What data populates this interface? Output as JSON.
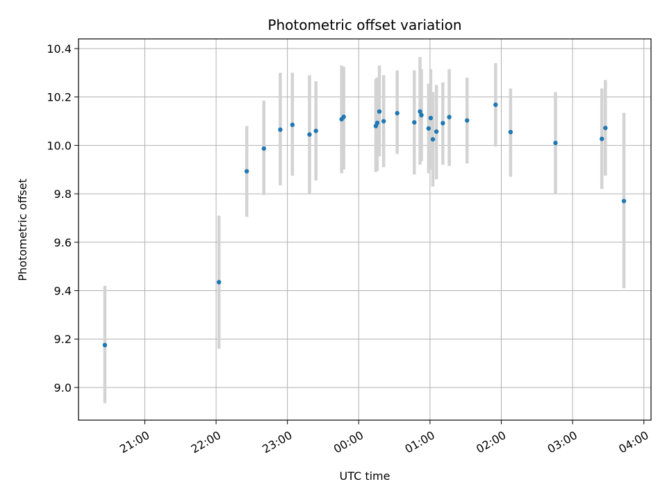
{
  "chart_data": {
    "type": "scatter",
    "title": "Photometric offset variation",
    "xlabel": "UTC time",
    "ylabel": "Photometric offset",
    "grid": true,
    "colors": {
      "point": "#1f77b4",
      "errorbar": "#d3d3d3",
      "grid": "#b0b0b0",
      "axis": "#000000"
    },
    "xlim_hours": [
      20.07,
      28.1
    ],
    "ylim": [
      8.865,
      10.44
    ],
    "x_ticks": [
      {
        "value": 21,
        "label": "21:00"
      },
      {
        "value": 22,
        "label": "22:00"
      },
      {
        "value": 23,
        "label": "23:00"
      },
      {
        "value": 24,
        "label": "00:00"
      },
      {
        "value": 25,
        "label": "01:00"
      },
      {
        "value": 26,
        "label": "02:00"
      },
      {
        "value": 27,
        "label": "03:00"
      },
      {
        "value": 28,
        "label": "04:00"
      }
    ],
    "y_ticks": [
      {
        "value": 9.0,
        "label": "9.0"
      },
      {
        "value": 9.2,
        "label": "9.2"
      },
      {
        "value": 9.4,
        "label": "9.4"
      },
      {
        "value": 9.6,
        "label": "9.6"
      },
      {
        "value": 9.8,
        "label": "9.8"
      },
      {
        "value": 10.0,
        "label": "10.0"
      },
      {
        "value": 10.2,
        "label": "10.2"
      },
      {
        "value": 10.4,
        "label": "10.4"
      }
    ],
    "points": [
      {
        "x": 20.44,
        "y": 9.175,
        "lo": 8.935,
        "hi": 9.42
      },
      {
        "x": 22.04,
        "y": 9.435,
        "lo": 9.16,
        "hi": 9.71
      },
      {
        "x": 22.43,
        "y": 9.893,
        "lo": 9.705,
        "hi": 10.08
      },
      {
        "x": 22.67,
        "y": 9.987,
        "lo": 9.795,
        "hi": 10.185
      },
      {
        "x": 22.9,
        "y": 10.065,
        "lo": 9.835,
        "hi": 10.3
      },
      {
        "x": 23.07,
        "y": 10.085,
        "lo": 9.875,
        "hi": 10.3
      },
      {
        "x": 23.31,
        "y": 10.045,
        "lo": 9.8,
        "hi": 10.29
      },
      {
        "x": 23.4,
        "y": 10.06,
        "lo": 9.855,
        "hi": 10.265
      },
      {
        "x": 23.76,
        "y": 10.108,
        "lo": 9.885,
        "hi": 10.33
      },
      {
        "x": 23.79,
        "y": 10.118,
        "lo": 9.9,
        "hi": 10.325
      },
      {
        "x": 24.24,
        "y": 10.08,
        "lo": 9.89,
        "hi": 10.275
      },
      {
        "x": 24.26,
        "y": 10.093,
        "lo": 9.895,
        "hi": 10.28
      },
      {
        "x": 24.29,
        "y": 10.14,
        "lo": 9.955,
        "hi": 10.33
      },
      {
        "x": 24.35,
        "y": 10.1,
        "lo": 9.91,
        "hi": 10.29
      },
      {
        "x": 24.54,
        "y": 10.133,
        "lo": 9.965,
        "hi": 10.31
      },
      {
        "x": 24.78,
        "y": 10.095,
        "lo": 9.88,
        "hi": 10.31
      },
      {
        "x": 24.86,
        "y": 10.14,
        "lo": 9.92,
        "hi": 10.365
      },
      {
        "x": 24.88,
        "y": 10.125,
        "lo": 9.935,
        "hi": 10.315
      },
      {
        "x": 24.98,
        "y": 10.07,
        "lo": 9.885,
        "hi": 10.255
      },
      {
        "x": 25.01,
        "y": 10.113,
        "lo": 9.9,
        "hi": 10.315
      },
      {
        "x": 25.04,
        "y": 10.025,
        "lo": 9.83,
        "hi": 10.22
      },
      {
        "x": 25.09,
        "y": 10.057,
        "lo": 9.86,
        "hi": 10.25
      },
      {
        "x": 25.18,
        "y": 10.092,
        "lo": 9.92,
        "hi": 10.26
      },
      {
        "x": 25.27,
        "y": 10.117,
        "lo": 9.915,
        "hi": 10.315
      },
      {
        "x": 25.52,
        "y": 10.103,
        "lo": 9.925,
        "hi": 10.28
      },
      {
        "x": 25.92,
        "y": 10.168,
        "lo": 9.995,
        "hi": 10.34
      },
      {
        "x": 26.13,
        "y": 10.055,
        "lo": 9.87,
        "hi": 10.235
      },
      {
        "x": 26.76,
        "y": 10.01,
        "lo": 9.8,
        "hi": 10.22
      },
      {
        "x": 27.41,
        "y": 10.027,
        "lo": 9.82,
        "hi": 10.235
      },
      {
        "x": 27.46,
        "y": 10.072,
        "lo": 9.875,
        "hi": 10.27
      },
      {
        "x": 27.72,
        "y": 9.77,
        "lo": 9.41,
        "hi": 10.135
      }
    ]
  }
}
